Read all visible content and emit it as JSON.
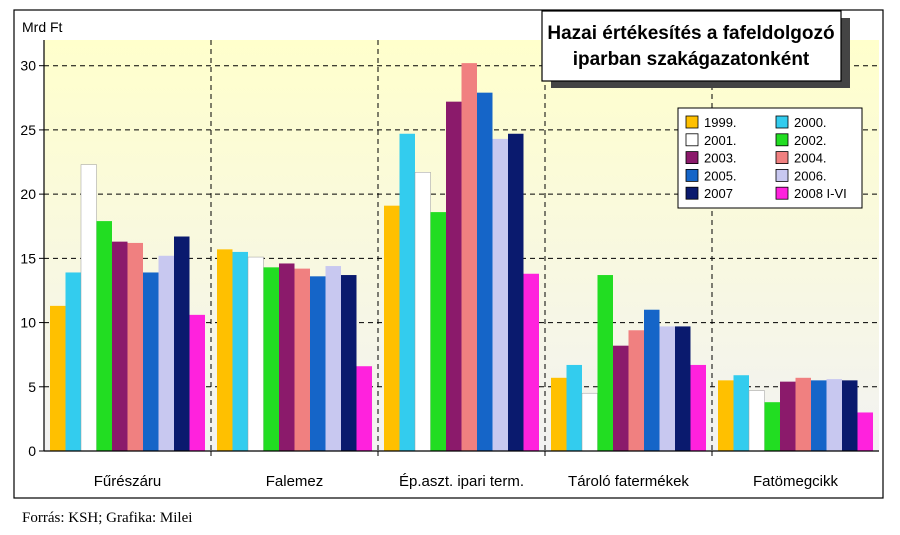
{
  "source_note": "Forrás: KSH; Grafika: Milei",
  "chart_data": {
    "type": "bar",
    "title_lines": [
      "Hazai értékesítés a fafeldolgozó",
      "iparban szakágazatonként"
    ],
    "ylabel": "Mrd Ft",
    "xlabel": "",
    "ylim": [
      0,
      32
    ],
    "yticks": [
      0,
      5,
      10,
      15,
      20,
      25,
      30
    ],
    "grid": true,
    "legend_position": "right",
    "categories": [
      "Fűrészáru",
      "Falemez",
      "Ép.aszt. ipari term.",
      "Tároló fatermékek",
      "Fatömegcikk"
    ],
    "series": [
      {
        "name": "1999.",
        "color": "#FFC000",
        "values": [
          11.3,
          15.7,
          19.1,
          5.7,
          5.5
        ]
      },
      {
        "name": "2000.",
        "color": "#33CCEE",
        "values": [
          13.9,
          15.5,
          24.7,
          6.7,
          5.9
        ]
      },
      {
        "name": "2001.",
        "color": "#FFFFFF",
        "values": [
          22.3,
          15.1,
          21.7,
          4.5,
          4.7
        ]
      },
      {
        "name": "2002.",
        "color": "#22DD22",
        "values": [
          17.9,
          14.3,
          18.6,
          13.7,
          3.8
        ]
      },
      {
        "name": "2003.",
        "color": "#8B1A6B",
        "values": [
          16.3,
          14.6,
          27.2,
          8.2,
          5.4
        ]
      },
      {
        "name": "2004.",
        "color": "#F08080",
        "values": [
          16.2,
          14.2,
          30.2,
          9.4,
          5.7
        ]
      },
      {
        "name": "2005.",
        "color": "#1565C8",
        "values": [
          13.9,
          13.6,
          27.9,
          11.0,
          5.5
        ]
      },
      {
        "name": "2006.",
        "color": "#C8C8F0",
        "values": [
          15.2,
          14.4,
          24.3,
          9.7,
          5.6
        ]
      },
      {
        "name": "2007",
        "color": "#0A1A6E",
        "values": [
          16.7,
          13.7,
          24.7,
          9.7,
          5.5
        ]
      },
      {
        "name": "2008 I-VI",
        "color": "#FF22DD",
        "values": [
          10.6,
          6.6,
          13.8,
          6.7,
          3.0
        ]
      }
    ]
  }
}
